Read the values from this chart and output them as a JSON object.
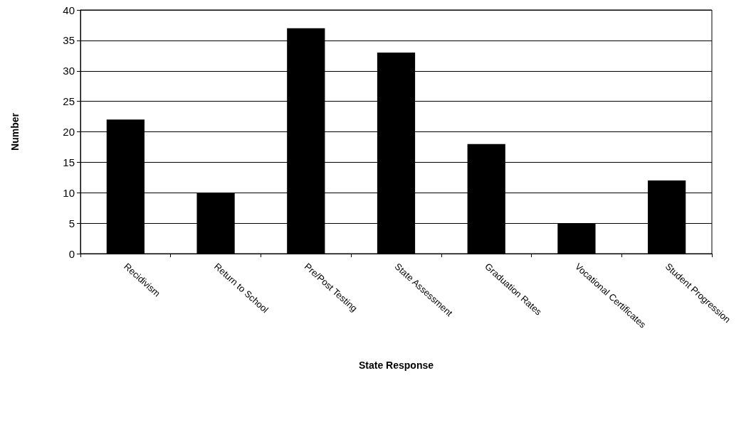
{
  "chart_data": {
    "type": "bar",
    "xlabel": "State Response",
    "ylabel": "Number",
    "categories": [
      "Recidivism",
      "Return to School",
      "Pre/Post Testing",
      "State Assessment",
      "Graduation Rates",
      "Vocational Certificates",
      "Student Progression"
    ],
    "values": [
      22,
      10,
      37,
      33,
      18,
      5,
      12
    ],
    "color": "#000000",
    "ylim": [
      0,
      40
    ],
    "yticks": [
      0,
      5,
      10,
      15,
      20,
      25,
      30,
      35,
      40
    ],
    "grid": "y"
  }
}
